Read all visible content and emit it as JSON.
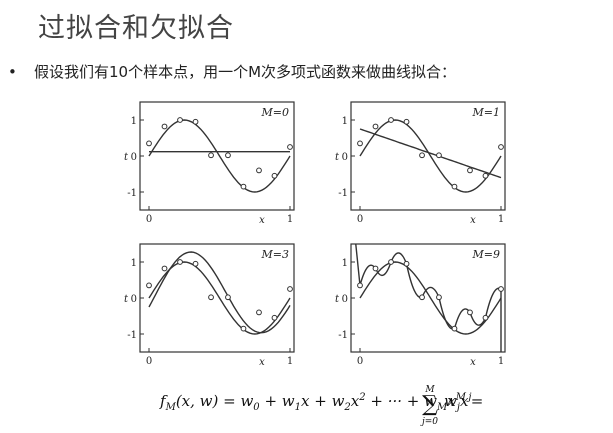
{
  "slide": {
    "title": "过拟合和欠拟合",
    "bullet": "假设我们有10个样本点，用一个M次多项式函数来做曲线拟合：",
    "bullet_marker": "•"
  },
  "chart_data": [
    {
      "type": "scatter",
      "title": "M=0",
      "xlabel": "x",
      "ylabel": "t",
      "xlim": [
        0,
        1
      ],
      "ylim": [
        -1.5,
        1.5
      ],
      "x_ticks": [
        "0",
        "1"
      ],
      "y_ticks": [
        "1",
        "0",
        "-1"
      ],
      "grid": false,
      "points": [
        [
          0,
          0.35
        ],
        [
          0.11,
          0.82
        ],
        [
          0.22,
          1.0
        ],
        [
          0.33,
          0.95
        ],
        [
          0.44,
          0.02
        ],
        [
          0.56,
          0.02
        ],
        [
          0.67,
          -0.85
        ],
        [
          0.78,
          -0.4
        ],
        [
          0.89,
          -0.55
        ],
        [
          1.0,
          0.25
        ]
      ],
      "fit_curve": "constant"
    },
    {
      "type": "scatter",
      "title": "M=1",
      "xlabel": "x",
      "ylabel": "t",
      "xlim": [
        0,
        1
      ],
      "ylim": [
        -1.5,
        1.5
      ],
      "x_ticks": [
        "0",
        "1"
      ],
      "y_ticks": [
        "1",
        "0",
        "-1"
      ],
      "grid": false,
      "points": [
        [
          0,
          0.35
        ],
        [
          0.11,
          0.82
        ],
        [
          0.22,
          1.0
        ],
        [
          0.33,
          0.95
        ],
        [
          0.44,
          0.02
        ],
        [
          0.56,
          0.02
        ],
        [
          0.67,
          -0.85
        ],
        [
          0.78,
          -0.4
        ],
        [
          0.89,
          -0.55
        ],
        [
          1.0,
          0.25
        ]
      ],
      "fit_curve": "linear"
    },
    {
      "type": "scatter",
      "title": "M=3",
      "xlabel": "x",
      "ylabel": "t",
      "xlim": [
        0,
        1
      ],
      "ylim": [
        -1.5,
        1.5
      ],
      "x_ticks": [
        "0",
        "1"
      ],
      "y_ticks": [
        "1",
        "0",
        "-1"
      ],
      "grid": false,
      "points": [
        [
          0,
          0.35
        ],
        [
          0.11,
          0.82
        ],
        [
          0.22,
          1.0
        ],
        [
          0.33,
          0.95
        ],
        [
          0.44,
          0.02
        ],
        [
          0.56,
          0.02
        ],
        [
          0.67,
          -0.85
        ],
        [
          0.78,
          -0.4
        ],
        [
          0.89,
          -0.55
        ],
        [
          1.0,
          0.25
        ]
      ],
      "fit_curve": "cubic"
    },
    {
      "type": "scatter",
      "title": "M=9",
      "xlabel": "x",
      "ylabel": "t",
      "xlim": [
        0,
        1
      ],
      "ylim": [
        -1.5,
        1.5
      ],
      "x_ticks": [
        "0",
        "1"
      ],
      "y_ticks": [
        "1",
        "0",
        "-1"
      ],
      "grid": false,
      "points": [
        [
          0,
          0.35
        ],
        [
          0.11,
          0.82
        ],
        [
          0.22,
          1.0
        ],
        [
          0.33,
          0.95
        ],
        [
          0.44,
          0.02
        ],
        [
          0.56,
          0.02
        ],
        [
          0.67,
          -0.85
        ],
        [
          0.78,
          -0.4
        ],
        [
          0.89,
          -0.55
        ],
        [
          1.0,
          0.25
        ]
      ],
      "fit_curve": "interpolating"
    }
  ],
  "formula": {
    "lhs": "f",
    "lhs_sub": "M",
    "lhs_args": "(x, w) = w",
    "t0_sub": "0",
    "plus1": " + w",
    "t1_sub": "1",
    "t1_var": "x + w",
    "t2_sub": "2",
    "t2_var": "x",
    "t2_sup": "2",
    "dots": " + ··· + w",
    "tM_sub": "M",
    "tM_var": "x",
    "tM_sup": "M",
    "eq": " =",
    "sum_sym": "∑",
    "sum_top": "M",
    "sum_bottom": "j=0",
    "sum_w": "w",
    "sum_w_sub": "j",
    "sum_x": "x",
    "sum_x_sup": "j"
  },
  "colors": {
    "curve": "#333333",
    "marker": "#333333",
    "title": "#444444"
  }
}
